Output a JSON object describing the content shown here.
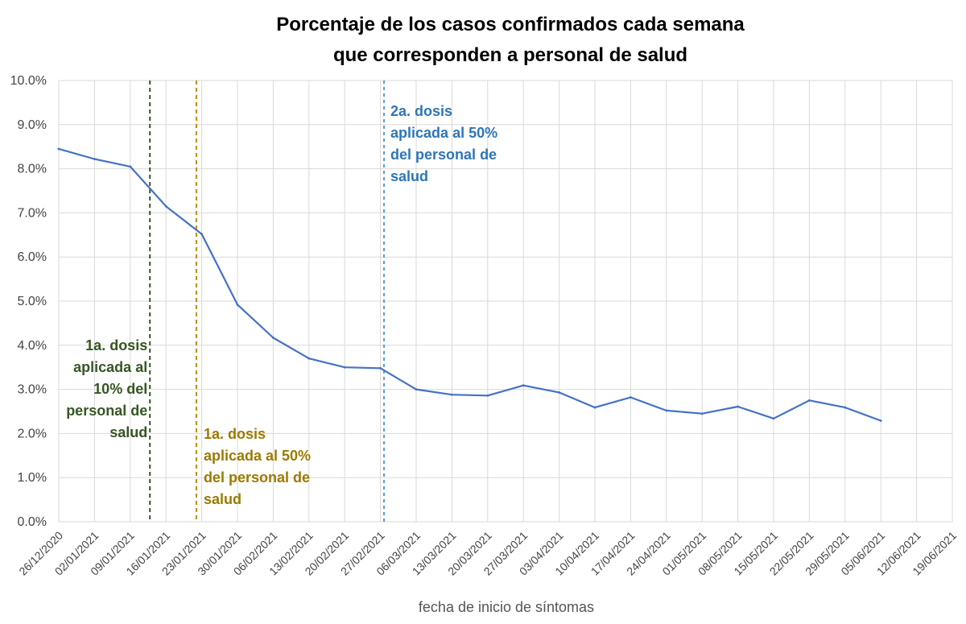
{
  "chart_data": {
    "type": "line",
    "title": [
      "Porcentaje de los casos confirmados cada semana",
      "que corresponden a personal de salud"
    ],
    "xlabel": "fecha de inicio de síntomas",
    "ylabel": "",
    "ylim": [
      0,
      10
    ],
    "yticks": [
      "0.0%",
      "1.0%",
      "2.0%",
      "3.0%",
      "4.0%",
      "5.0%",
      "6.0%",
      "7.0%",
      "8.0%",
      "9.0%",
      "10.0%"
    ],
    "grid": true,
    "categories": [
      "26/12/2020",
      "02/01/2021",
      "09/01/2021",
      "16/01/2021",
      "23/01/2021",
      "30/01/2021",
      "06/02/2021",
      "13/02/2021",
      "20/02/2021",
      "27/02/2021",
      "06/03/2021",
      "13/03/2021",
      "20/03/2021",
      "27/03/2021",
      "03/04/2021",
      "10/04/2021",
      "17/04/2021",
      "24/04/2021",
      "01/05/2021",
      "08/05/2021",
      "15/05/2021",
      "22/05/2021",
      "29/05/2021",
      "05/06/2021",
      "12/06/2021",
      "19/06/2021"
    ],
    "series": [
      {
        "name": "personal de salud",
        "color": "#4472C4",
        "values": [
          8.45,
          8.22,
          8.05,
          7.15,
          6.52,
          4.92,
          4.17,
          3.7,
          3.5,
          3.48,
          3.0,
          2.88,
          2.86,
          3.09,
          2.93,
          2.59,
          2.82,
          2.52,
          2.45,
          2.61,
          2.34,
          2.75,
          2.59,
          2.29,
          null,
          null
        ]
      }
    ],
    "annotations": [
      {
        "at": 2.55,
        "color": "#375623",
        "dash": "5,4",
        "text_color": "#375623",
        "lines": [
          "1a. dosis",
          "aplicada al",
          "10% del",
          "personal de",
          "salud"
        ],
        "align": "right"
      },
      {
        "at": 3.85,
        "color": "#BF8F00",
        "dash": "5,4",
        "text_color": "#9C7A00",
        "lines": [
          "1a. dosis",
          "aplicada al 50%",
          "del personal de",
          "salud"
        ],
        "align": "left"
      },
      {
        "at": 9.1,
        "color": "#5B9BD5",
        "dash": "4,4",
        "text_color": "#2E75B6",
        "lines": [
          "2a. dosis",
          "aplicada al 50%",
          "del personal de",
          "salud"
        ],
        "align": "left"
      }
    ]
  }
}
